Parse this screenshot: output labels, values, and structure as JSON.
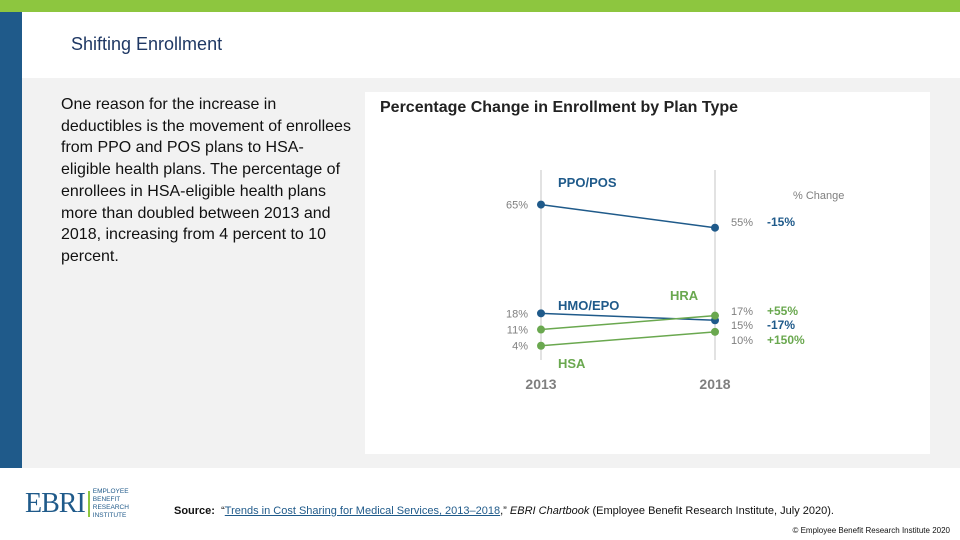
{
  "slide": {
    "title": "Shifting Enrollment",
    "body": "One reason for the increase in deductibles is the movement of enrollees from PPO and POS plans to HSA-eligible health plans. The percentage of enrollees in HSA-eligible health plans more than doubled between 2013 and 2018, increasing from 4 percent to 10 percent."
  },
  "footer": {
    "logo_main": "EBRI",
    "logo_sub": "EMPLOYEE BENEFIT RESEARCH INSTITUTE",
    "source_label": "Source:",
    "source_pre": "“",
    "source_link": "Trends in Cost Sharing for Medical Services, 2013–2018",
    "source_mid": ",” ",
    "source_pub": "EBRI Chartbook",
    "source_post": " (Employee Benefit Research Institute, July 2020).",
    "copyright": "© Employee Benefit Research Institute 2020"
  },
  "colors": {
    "blue": "#1f5a8a",
    "green": "#6aa84f",
    "accent": "#8dc63f"
  },
  "chart_data": {
    "type": "line",
    "title": "Percentage Change in Enrollment by Plan Type",
    "x": [
      "2013",
      "2018"
    ],
    "change_header": "% Change",
    "ylim": [
      0,
      70
    ],
    "series": [
      {
        "name": "PPO/POS",
        "values": [
          65,
          55
        ],
        "labels": [
          "65%",
          "55%"
        ],
        "change": "-15%",
        "color": "#1f5a8a"
      },
      {
        "name": "HMO/EPO",
        "values": [
          18,
          15
        ],
        "labels": [
          "18%",
          "15%"
        ],
        "change": "-17%",
        "color": "#1f5a8a"
      },
      {
        "name": "HRA",
        "values": [
          11,
          17
        ],
        "labels": [
          "11%",
          "17%"
        ],
        "change": "+55%",
        "color": "#6aa84f"
      },
      {
        "name": "HSA",
        "values": [
          4,
          10
        ],
        "labels": [
          "4%",
          "10%"
        ],
        "change": "+150%",
        "color": "#6aa84f"
      }
    ]
  }
}
